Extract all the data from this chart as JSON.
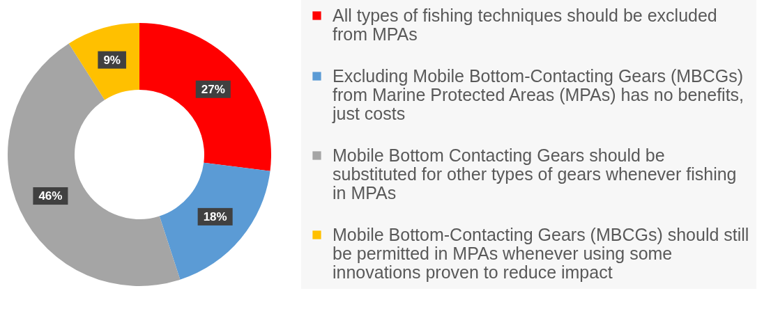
{
  "chart_data": {
    "type": "donut",
    "categories": [
      "All types of fishing techniques should be excluded from MPAs",
      "Excluding Mobile Bottom-Contacting Gears (MBCGs) from Marine Protected Areas (MPAs) has no benefits, just costs",
      "Mobile Bottom Contacting Gears should be substituted for other types of gears whenever fishing in MPAs",
      "Mobile Bottom-Contacting Gears (MBCGs) should still be permitted in MPAs whenever using some innovations proven to reduce impact"
    ],
    "values": [
      27,
      18,
      46,
      9
    ],
    "colors": [
      "#ff0000",
      "#5b9bd5",
      "#a5a5a5",
      "#ffc000"
    ],
    "value_labels": [
      "27%",
      "18%",
      "46%",
      "9%"
    ],
    "legend": "right"
  }
}
